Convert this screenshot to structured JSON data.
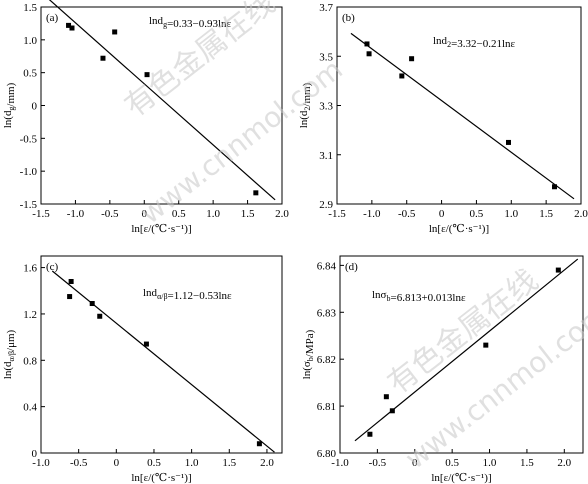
{
  "chart_data": [
    {
      "type": "scatter",
      "panel": "(a)",
      "ylabel": "ln(d_g/mm)",
      "xlabel": "ln[ε/(℃·s⁻¹)]",
      "equation": "lnd_g=0.33−0.93lnε",
      "xlim": [
        -1.5,
        2.0
      ],
      "ylim": [
        -1.5,
        1.5
      ],
      "xticks": [
        "-1.5",
        "-1.0",
        "-0.5",
        "0",
        "0.5",
        "1.0",
        "1.5",
        "2.0"
      ],
      "yticks": [
        "-1.5",
        "-1.0",
        "-0.5",
        "0",
        "0.5",
        "1.0",
        "1.5"
      ],
      "points": [
        [
          -1.1,
          1.22
        ],
        [
          -1.05,
          1.18
        ],
        [
          -0.6,
          0.72
        ],
        [
          -0.43,
          1.12
        ],
        [
          0.04,
          0.47
        ],
        [
          1.62,
          -1.33
        ]
      ],
      "fit": {
        "intercept": 0.33,
        "slope": -0.93,
        "x_range": [
          -1.5,
          1.9
        ]
      }
    },
    {
      "type": "scatter",
      "panel": "(b)",
      "ylabel": "ln(d_2/mm)",
      "xlabel": "ln[ε/(℃·s⁻¹)]",
      "equation": "lnd_2=3.32−0.21lnε",
      "xlim": [
        -1.5,
        2.0
      ],
      "ylim": [
        2.9,
        3.7
      ],
      "xticks": [
        "-1.5",
        "-1.0",
        "-0.5",
        "0",
        "0.5",
        "1.0",
        "1.5",
        "2.0"
      ],
      "yticks": [
        "2.9",
        "3.1",
        "3.3",
        "3.5",
        "3.7"
      ],
      "points": [
        [
          -1.07,
          3.55
        ],
        [
          -1.04,
          3.51
        ],
        [
          -0.57,
          3.42
        ],
        [
          -0.43,
          3.49
        ],
        [
          0.96,
          3.15
        ],
        [
          1.62,
          2.97
        ]
      ],
      "fit": {
        "intercept": 3.32,
        "slope": -0.21,
        "x_range": [
          -1.3,
          1.9
        ]
      }
    },
    {
      "type": "scatter",
      "panel": "(c)",
      "ylabel": "ln(d_α/β/μm)",
      "xlabel": "ln[ε/(℃·s⁻¹)]",
      "equation": "lnd_α/β=1.12−0.53lnε",
      "xlim": [
        -1.0,
        2.2
      ],
      "ylim": [
        0,
        1.7
      ],
      "xticks": [
        "-1.0",
        "-0.5",
        "0",
        "0.5",
        "1.0",
        "1.5",
        "2.0"
      ],
      "yticks": [
        "0",
        "0.4",
        "0.8",
        "1.2",
        "1.6"
      ],
      "points": [
        [
          -0.6,
          1.48
        ],
        [
          -0.62,
          1.35
        ],
        [
          -0.32,
          1.29
        ],
        [
          -0.22,
          1.18
        ],
        [
          0.4,
          0.94
        ],
        [
          1.9,
          0.08
        ]
      ],
      "fit": {
        "intercept": 1.12,
        "slope": -0.53,
        "x_range": [
          -0.85,
          2.1
        ]
      }
    },
    {
      "type": "scatter",
      "panel": "(d)",
      "ylabel": "ln(σ_b/MPa)",
      "xlabel": "ln[ε/(℃·s⁻¹)]",
      "equation": "lnσ_b=6.813+0.013lnε",
      "xlim": [
        -1.0,
        2.25
      ],
      "ylim": [
        6.8,
        6.842
      ],
      "xticks": [
        "-1.0",
        "-0.5",
        "0",
        "0.5",
        "1.0",
        "1.5",
        "2.0"
      ],
      "yticks": [
        "6.80",
        "6.81",
        "6.82",
        "6.83",
        "6.84"
      ],
      "points": [
        [
          -0.6,
          6.804
        ],
        [
          -0.38,
          6.812
        ],
        [
          -0.3,
          6.809
        ],
        [
          0.95,
          6.823
        ],
        [
          1.92,
          6.839
        ]
      ],
      "fit": {
        "intercept": 6.813,
        "slope": 0.013,
        "x_range": [
          -0.8,
          2.18
        ]
      }
    }
  ],
  "watermark": {
    "cn": "有色金属在线",
    "url": "www.cnnmol.com"
  }
}
